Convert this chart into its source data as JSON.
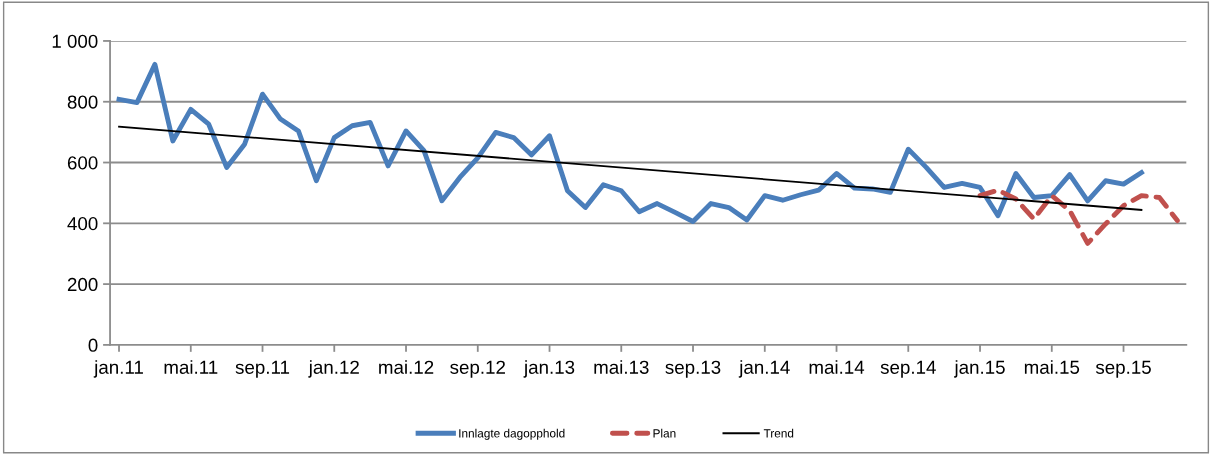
{
  "chart_data": {
    "type": "line",
    "categories": [
      "jan.11",
      null,
      null,
      null,
      "mai.11",
      null,
      null,
      null,
      "sep.11",
      null,
      null,
      null,
      "jan.12",
      null,
      null,
      null,
      "mai.12",
      null,
      null,
      null,
      "sep.12",
      null,
      null,
      null,
      "jan.13",
      null,
      null,
      null,
      "mai.13",
      null,
      null,
      null,
      "sep.13",
      null,
      null,
      null,
      "jan.14",
      null,
      null,
      null,
      "mai.14",
      null,
      null,
      null,
      "sep.14",
      null,
      null,
      null,
      "jan.15",
      null,
      null,
      null,
      "mai.15",
      null,
      null,
      null,
      "sep.15",
      null,
      null,
      null
    ],
    "series": [
      {
        "name": "Innlagte dagopphold",
        "color": "#4a7ebb",
        "line_style": "solid",
        "values": [
          808,
          797,
          923,
          671,
          775,
          726,
          584,
          660,
          825,
          743,
          704,
          540,
          682,
          721,
          732,
          589,
          704,
          639,
          474,
          551,
          615,
          699,
          682,
          625,
          688,
          507,
          452,
          527,
          507,
          438,
          465,
          436,
          406,
          465,
          452,
          411,
          491,
          476,
          494,
          509,
          564,
          516,
          513,
          502,
          644,
          584,
          518,
          531,
          518,
          425,
          564,
          485,
          491,
          560,
          474,
          540,
          529,
          567,
          null,
          null
        ]
      },
      {
        "name": "Plan",
        "color": "#c0504d",
        "line_style": "dashed",
        "values": [
          null,
          null,
          null,
          null,
          null,
          null,
          null,
          null,
          null,
          null,
          null,
          null,
          null,
          null,
          null,
          null,
          null,
          null,
          null,
          null,
          null,
          null,
          null,
          null,
          null,
          null,
          null,
          null,
          null,
          null,
          null,
          null,
          null,
          null,
          null,
          null,
          null,
          null,
          null,
          null,
          null,
          null,
          null,
          null,
          null,
          null,
          null,
          null,
          491,
          509,
          480,
          414,
          491,
          442,
          334,
          398,
          458,
          491,
          485,
          409
        ]
      },
      {
        "name": "Trend",
        "color": "#000000",
        "line_style": "solid",
        "values": [
          718,
          null,
          null,
          null,
          null,
          null,
          null,
          null,
          null,
          null,
          null,
          null,
          null,
          null,
          null,
          null,
          null,
          null,
          null,
          null,
          null,
          null,
          null,
          null,
          null,
          null,
          null,
          null,
          null,
          null,
          null,
          null,
          null,
          null,
          null,
          null,
          null,
          null,
          null,
          null,
          null,
          null,
          null,
          null,
          null,
          null,
          null,
          null,
          null,
          null,
          null,
          null,
          null,
          null,
          null,
          null,
          null,
          444,
          null,
          null
        ]
      }
    ],
    "ylim": [
      0,
      1000
    ],
    "yticks": [
      0,
      200,
      400,
      600,
      800,
      {
        "value": 1000,
        "label": "1 000"
      }
    ],
    "grid": "y",
    "legend": "bottom",
    "marker": "none"
  }
}
